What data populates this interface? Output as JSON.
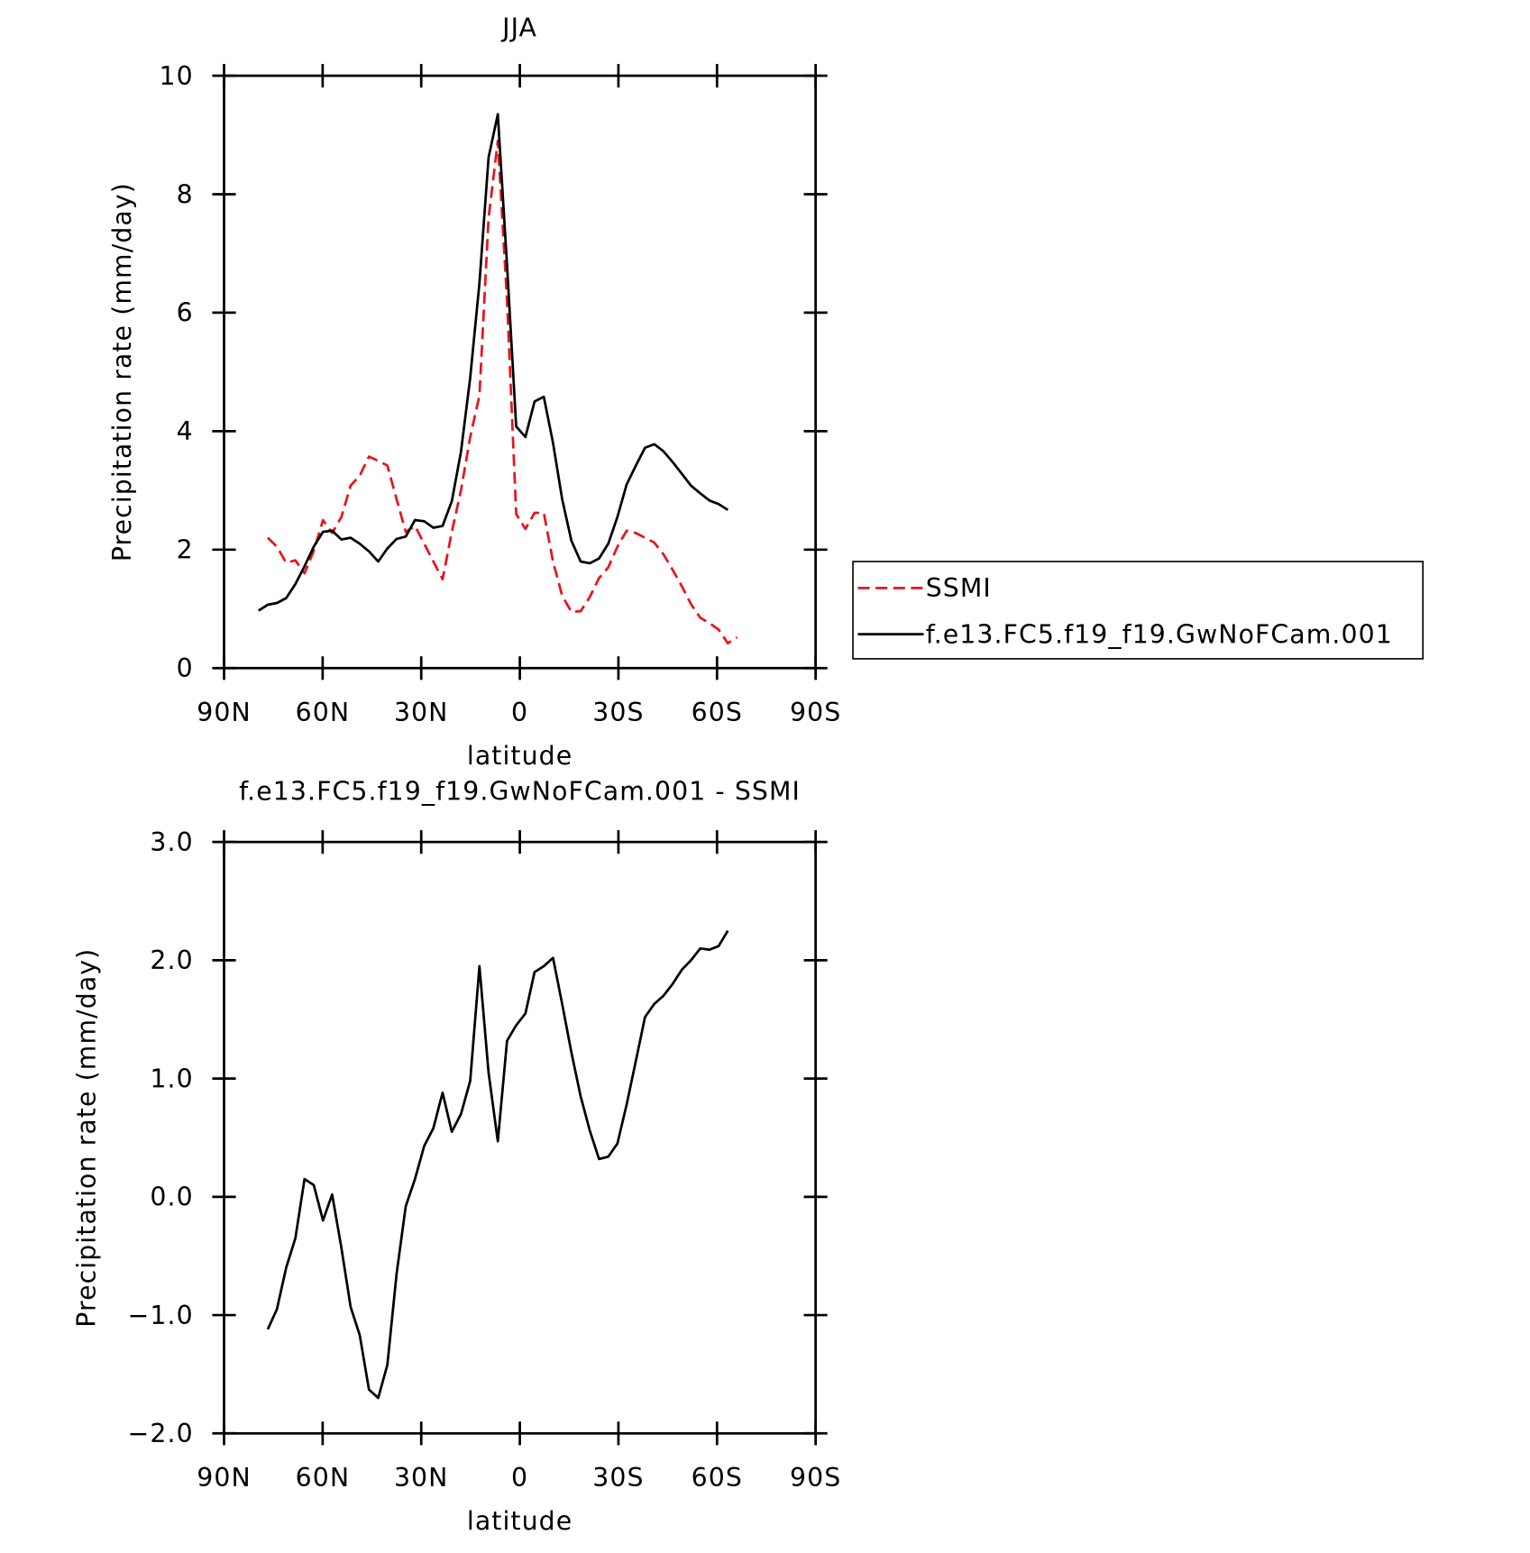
{
  "chart_data": [
    {
      "type": "line",
      "title": "JJA",
      "xlabel": "latitude",
      "ylabel": "Precipitation rate (mm/day)",
      "x": [
        79.5,
        76.7,
        73.9,
        71.1,
        68.3,
        65.5,
        62.7,
        59.9,
        57.1,
        54.3,
        51.5,
        48.7,
        45.9,
        43.1,
        40.3,
        37.5,
        34.7,
        31.9,
        29.1,
        26.3,
        23.5,
        20.7,
        17.9,
        15.1,
        12.3,
        9.5,
        6.7,
        3.9,
        1.1,
        -1.7,
        -4.5,
        -7.3,
        -10.1,
        -12.9,
        -15.7,
        -18.5,
        -21.3,
        -24.1,
        -26.9,
        -29.7,
        -32.5,
        -35.3,
        -38.1,
        -40.9,
        -43.7,
        -46.5,
        -49.3,
        -52.1,
        -54.9,
        -57.7,
        -60.5,
        -63.3,
        -66.1
      ],
      "series": [
        {
          "name": "SSMI",
          "color": "#e8141c",
          "dashed": true,
          "values": [
            null,
            2.2,
            2.05,
            1.78,
            1.82,
            1.6,
            1.98,
            2.5,
            2.28,
            2.55,
            3.08,
            3.25,
            3.57,
            3.5,
            3.42,
            2.85,
            2.3,
            2.4,
            2.1,
            1.8,
            1.5,
            2.3,
            3.0,
            3.9,
            4.6,
            7.6,
            8.9,
            6.2,
            2.6,
            2.35,
            2.62,
            2.62,
            1.8,
            1.22,
            0.95,
            0.96,
            1.2,
            1.52,
            1.7,
            2.05,
            2.32,
            2.28,
            2.2,
            2.12,
            1.92,
            1.66,
            1.38,
            1.08,
            0.85,
            0.76,
            0.65,
            0.42,
            0.52
          ]
        },
        {
          "name": "f.e13.FC5.f19_f19.GwNoFCam.001",
          "color": "#000000",
          "dashed": false,
          "values": [
            0.97,
            1.07,
            1.1,
            1.18,
            1.42,
            1.72,
            2.05,
            2.3,
            2.32,
            2.17,
            2.2,
            2.1,
            1.97,
            1.8,
            2.02,
            2.18,
            2.22,
            2.5,
            2.48,
            2.37,
            2.4,
            2.82,
            3.65,
            4.9,
            6.5,
            8.62,
            9.35,
            6.8,
            4.08,
            3.9,
            4.5,
            4.58,
            3.8,
            2.85,
            2.15,
            1.8,
            1.77,
            1.85,
            2.1,
            2.55,
            3.1,
            3.42,
            3.72,
            3.78,
            3.66,
            3.48,
            3.28,
            3.08,
            2.95,
            2.83,
            2.77,
            2.67,
            null
          ]
        }
      ],
      "xlim": [
        90,
        -90
      ],
      "xticks": [
        {
          "value": 90,
          "label": "90N"
        },
        {
          "value": 60,
          "label": "60N"
        },
        {
          "value": 30,
          "label": "30N"
        },
        0,
        {
          "value": -30,
          "label": "30S"
        },
        {
          "value": -60,
          "label": "60S"
        },
        {
          "value": -90,
          "label": "90S"
        }
      ],
      "ylim": [
        0,
        10
      ],
      "yticks": [
        0,
        2,
        4,
        6,
        8,
        10
      ],
      "legend": "right"
    },
    {
      "type": "line",
      "title": "f.e13.FC5.f19_f19.GwNoFCam.001 - SSMI",
      "xlabel": "latitude",
      "ylabel": "Precipitation rate (mm/day)",
      "x": [
        79.5,
        76.7,
        73.9,
        71.1,
        68.3,
        65.5,
        62.7,
        59.9,
        57.1,
        54.3,
        51.5,
        48.7,
        45.9,
        43.1,
        40.3,
        37.5,
        34.7,
        31.9,
        29.1,
        26.3,
        23.5,
        20.7,
        17.9,
        15.1,
        12.3,
        9.5,
        6.7,
        3.9,
        1.1,
        -1.7,
        -4.5,
        -7.3,
        -10.1,
        -12.9,
        -15.7,
        -18.5,
        -21.3,
        -24.1,
        -26.9,
        -29.7,
        -32.5,
        -35.3,
        -38.1,
        -40.9,
        -43.7,
        -46.5,
        -49.3,
        -52.1,
        -54.9,
        -57.7,
        -60.5,
        -63.3,
        -66.1
      ],
      "series": [
        {
          "color": "#000000",
          "dashed": false,
          "values": [
            null,
            -1.12,
            -0.95,
            -0.6,
            -0.35,
            0.15,
            0.1,
            -0.2,
            0.02,
            -0.43,
            -0.93,
            -1.17,
            -1.63,
            -1.7,
            -1.42,
            -0.65,
            -0.08,
            0.15,
            0.43,
            0.58,
            0.88,
            0.55,
            0.7,
            0.98,
            1.95,
            1.05,
            0.47,
            1.32,
            1.45,
            1.55,
            1.9,
            1.95,
            2.02,
            1.63,
            1.22,
            0.85,
            0.56,
            0.32,
            0.34,
            0.45,
            0.78,
            1.15,
            1.52,
            1.63,
            1.7,
            1.8,
            1.92,
            2.0,
            2.1,
            2.09,
            2.12,
            2.25,
            null
          ]
        }
      ],
      "xlim": [
        90,
        -90
      ],
      "xticks": [
        {
          "value": 90,
          "label": "90N"
        },
        {
          "value": 60,
          "label": "60N"
        },
        {
          "value": 30,
          "label": "30N"
        },
        0,
        {
          "value": -30,
          "label": "30S"
        },
        {
          "value": -60,
          "label": "60S"
        },
        {
          "value": -90,
          "label": "90S"
        }
      ],
      "ylim": [
        -2,
        3
      ],
      "yticks": [
        {
          "value": -2,
          "label": "−2.0"
        },
        {
          "value": -1,
          "label": "−1.0"
        },
        {
          "value": 0,
          "label": "0.0"
        },
        {
          "value": 1,
          "label": "1.0"
        },
        {
          "value": 2,
          "label": "2.0"
        },
        {
          "value": 3,
          "label": "3.0"
        }
      ]
    }
  ]
}
